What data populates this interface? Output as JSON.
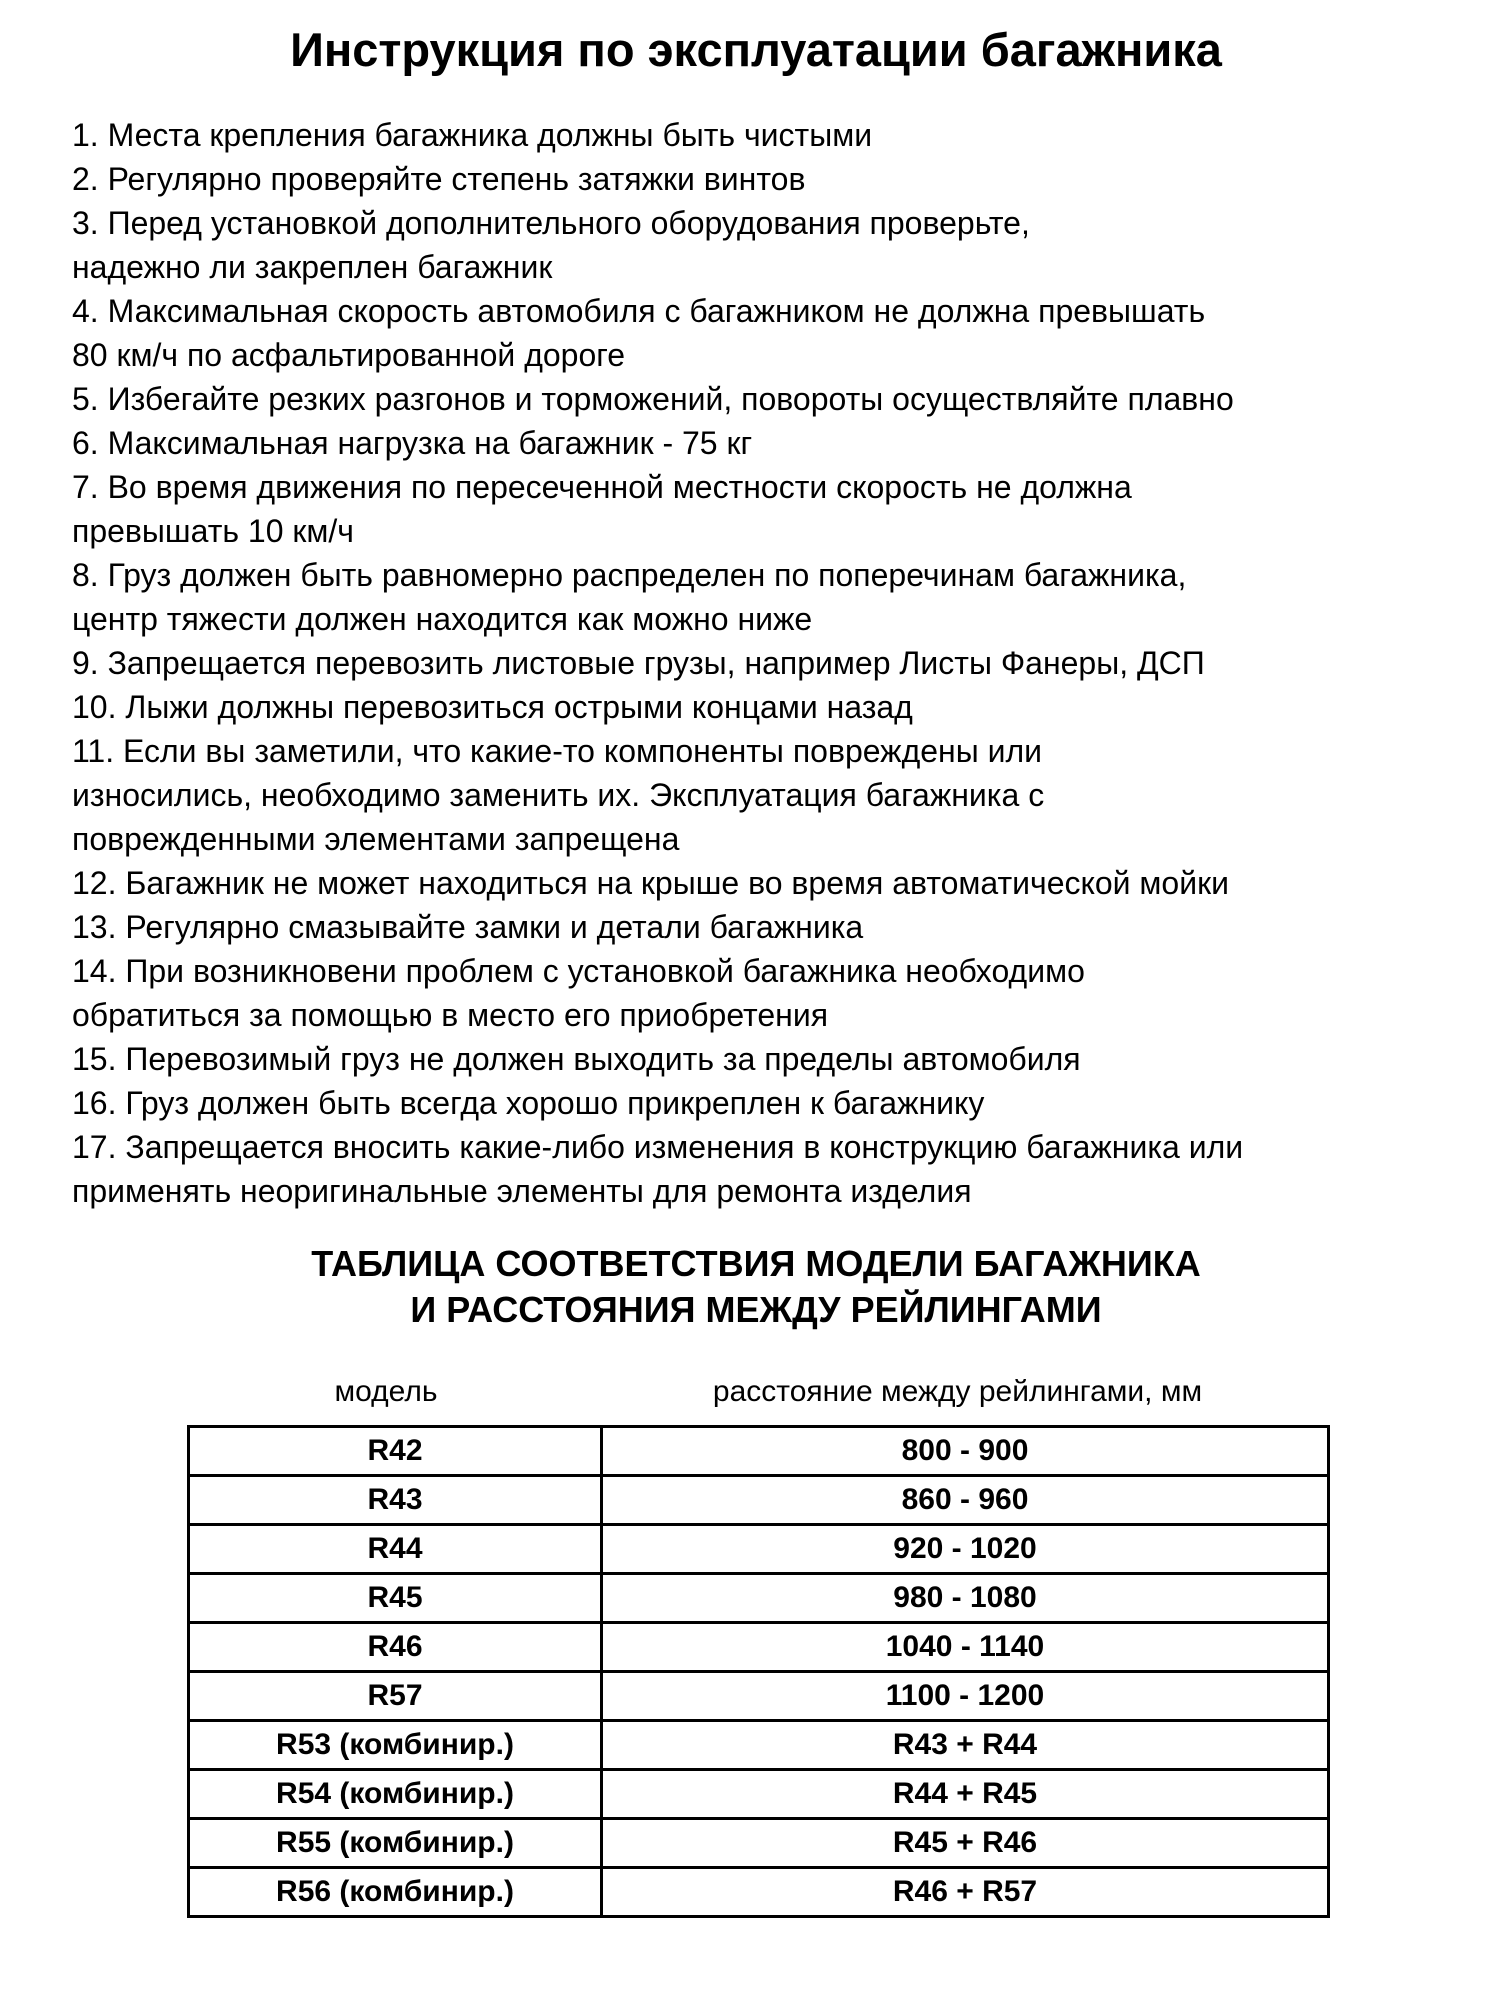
{
  "page": {
    "title": "Инструкция по эксплуатации багажника"
  },
  "instructions": {
    "items": [
      "1. Места крепления багажника должны быть чистыми",
      "2. Регулярно проверяйте степень затяжки винтов",
      "3. Перед установкой дополнительного оборудования проверьте,\nнадежно ли закреплен багажник",
      "4. Максимальная скорость автомобиля с багажником не должна превышать\n80 км/ч по асфальтированной дороге",
      "5. Избегайте резких разгонов и торможений, повороты осуществляйте плавно",
      "6. Максимальная нагрузка на багажник - 75 кг",
      "7. Во время движения по пересеченной местности скорость не должна\nпревышать 10 км/ч",
      "8. Груз должен быть равномерно распределен по поперечинам багажника,\nцентр тяжести должен находится как можно ниже",
      "9. Запрещается перевозить листовые грузы, например Листы Фанеры, ДСП",
      "10. Лыжи должны перевозиться острыми концами назад",
      "11. Если вы заметили, что какие-то компоненты повреждены или\nизносились, необходимо заменить их. Эксплуатация багажника с\nповрежденными элементами запрещена",
      "12. Багажник не может находиться на крыше во время автоматической мойки",
      "13. Регулярно смазывайте замки и детали багажника",
      "14. При возникновени проблем с установкой багажника необходимо\nобратиться за помощью в место его приобретения",
      "15. Перевозимый груз не должен выходить за пределы автомобиля",
      "16. Груз должен быть всегда хорошо прикреплен к багажнику",
      "17. Запрещается вносить какие-либо изменения в конструкцию багажника или\nприменять неоригинальные элементы для ремонта изделия"
    ]
  },
  "table_section": {
    "heading": "ТАБЛИЦА СООТВЕТСТВИЯ МОДЕЛИ БАГАЖНИКА\nИ РАССТОЯНИЯ МЕЖДУ РЕЙЛИНГАМИ",
    "column_headers": {
      "model": "модель",
      "distance": "расстояние между рейлингами, мм"
    },
    "rows": [
      {
        "model": "R42",
        "distance": "800 - 900"
      },
      {
        "model": "R43",
        "distance": "860 - 960"
      },
      {
        "model": "R44",
        "distance": "920 - 1020"
      },
      {
        "model": "R45",
        "distance": "980 - 1080"
      },
      {
        "model": "R46",
        "distance": "1040 - 1140"
      },
      {
        "model": "R57",
        "distance": "1100 - 1200"
      },
      {
        "model": "R53 (комбинир.)",
        "distance": "R43 + R44"
      },
      {
        "model": "R54 (комбинир.)",
        "distance": "R44 + R45"
      },
      {
        "model": "R55 (комбинир.)",
        "distance": "R45 + R46"
      },
      {
        "model": "R56 (комбинир.)",
        "distance": "R46 + R57"
      }
    ],
    "text_color": "#000000",
    "border_color": "#000000",
    "background_color": "#ffffff"
  }
}
